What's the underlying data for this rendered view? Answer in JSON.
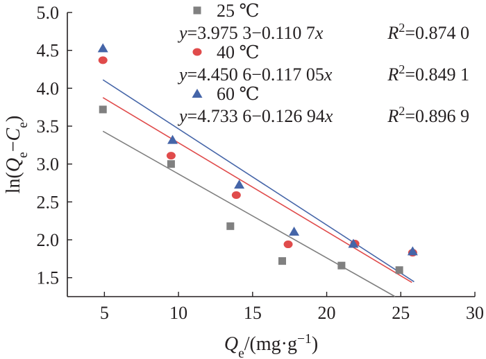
{
  "chart_data": {
    "type": "scatter",
    "xlabel": "Qe/(mg·g−1)",
    "ylabel": "ln(Qe−Ce)",
    "xlim": [
      2.5,
      30
    ],
    "ylim": [
      1.25,
      5.0
    ],
    "x_ticks": [
      "5",
      "10",
      "15",
      "20",
      "25",
      "30"
    ],
    "y_ticks": [
      "1.5",
      "2.0",
      "2.5",
      "3.0",
      "3.5",
      "4.0",
      "4.5",
      "5.0"
    ],
    "grid": false,
    "legend_position": "top-right",
    "series": [
      {
        "name": "25 ℃",
        "marker": "square",
        "color": "#808080",
        "line_color": "#7f7f7f",
        "fit": {
          "intercept": 3.9753,
          "slope": -0.1107,
          "label": "y=3.975 3−0.110 7x",
          "r2": "R2=0.874 0"
        },
        "x": [
          4.9,
          9.5,
          13.5,
          17.0,
          21.0,
          24.9
        ],
        "y": [
          3.72,
          3.0,
          2.18,
          1.72,
          1.66,
          1.6
        ]
      },
      {
        "name": "40 ℃",
        "marker": "circle",
        "color": "#e04b4b",
        "line_color": "#e04b4b",
        "fit": {
          "intercept": 4.4506,
          "slope": -0.11705,
          "label": "y=4.450 6−0.117 05x",
          "r2": "R2=0.849 1"
        },
        "x": [
          4.9,
          9.5,
          13.9,
          17.4,
          21.9,
          25.8
        ],
        "y": [
          4.37,
          3.11,
          2.59,
          1.94,
          1.95,
          1.83
        ]
      },
      {
        "name": "60 ℃",
        "marker": "triangle",
        "color": "#4565a8",
        "line_color": "#4565a8",
        "fit": {
          "intercept": 4.7336,
          "slope": -0.12694,
          "label": "y=4.733 6−0.126 94x",
          "r2": "R2=0.896 9"
        },
        "x": [
          4.9,
          9.6,
          14.1,
          17.8,
          21.8,
          25.8
        ],
        "y": [
          4.53,
          3.32,
          2.73,
          2.11,
          1.95,
          1.85
        ]
      }
    ]
  }
}
